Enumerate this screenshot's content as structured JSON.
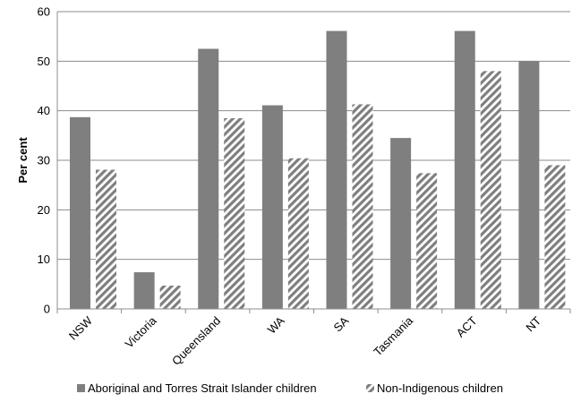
{
  "chart_data": {
    "type": "bar",
    "title": "",
    "xlabel": "",
    "ylabel": "Per cent",
    "ylim": [
      0,
      60
    ],
    "yticks": [
      0,
      10,
      20,
      30,
      40,
      50,
      60
    ],
    "grid": true,
    "legend_position": "bottom",
    "categories": [
      "NSW",
      "Victoria",
      "Queensland",
      "WA",
      "SA",
      "Tasmania",
      "ACT",
      "NT"
    ],
    "series": [
      {
        "name": "Aboriginal and Torres Strait Islander children",
        "values": [
          38.7,
          7.4,
          52.5,
          41.1,
          56.1,
          34.5,
          56.1,
          50.0
        ],
        "color": "#7f7f7f",
        "pattern": "solid"
      },
      {
        "name": "Non-Indigenous children",
        "values": [
          28.1,
          4.7,
          38.5,
          30.4,
          41.3,
          27.4,
          48.0,
          29.0
        ],
        "color": "#7f7f7f",
        "pattern": "diagonal-hatch"
      }
    ]
  }
}
